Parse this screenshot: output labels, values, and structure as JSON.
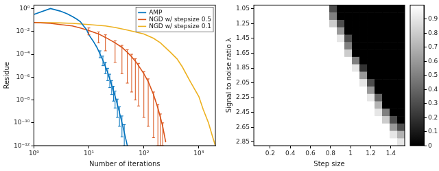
{
  "chart_data": [
    {
      "type": "line",
      "x_label": "Number of iterations",
      "y_label": "Residue",
      "log": true,
      "grid": false,
      "legend": "top-right",
      "xlim": [
        1,
        2000
      ],
      "ylim": [
        1e-12,
        2
      ],
      "xticks": [
        {
          "value": 1,
          "label": "10⁰"
        },
        {
          "value": 10,
          "label": "10¹"
        },
        {
          "value": 100,
          "label": "10²"
        },
        {
          "value": 1000,
          "label": "10³"
        }
      ],
      "yticks": [
        {
          "value": 1e-12,
          "label": "10⁻¹²"
        },
        {
          "value": 1e-10,
          "label": "10⁻¹⁰"
        },
        {
          "value": 1e-08,
          "label": "10⁻⁸"
        },
        {
          "value": 1e-06,
          "label": "10⁻⁶"
        },
        {
          "value": 0.0001,
          "label": "10⁻⁴"
        },
        {
          "value": 0.01,
          "label": "10⁻²"
        },
        {
          "value": 1,
          "label": "10⁰"
        }
      ],
      "series": [
        {
          "name": "AMP",
          "color": "#0072BD",
          "x": [
            1,
            2,
            3,
            4,
            5,
            6,
            7,
            8,
            9,
            10,
            12,
            14,
            16,
            18,
            20,
            22,
            24,
            26,
            28,
            30,
            33,
            36,
            40,
            44,
            48,
            50
          ],
          "values": [
            0.3,
            1,
            0.6,
            0.35,
            0.2,
            0.12,
            0.07,
            0.03,
            0.015,
            0.005,
            0.0014,
            0.0004,
            0.0001,
            3e-05,
            8e-06,
            2.5e-06,
            7e-07,
            2e-07,
            6e-08,
            2e-08,
            4e-09,
            8e-10,
            1e-10,
            1.5e-11,
            2.5e-12,
            1e-12
          ],
          "lower": [
            null,
            null,
            null,
            null,
            null,
            null,
            null,
            null,
            null,
            null,
            null,
            null,
            5e-05,
            1e-05,
            2e-06,
            5e-07,
            1.2e-07,
            3e-08,
            8e-09,
            2e-09,
            3e-10,
            5e-11,
            6e-12,
            1e-12,
            null,
            null
          ],
          "upper": [
            null,
            null,
            null,
            null,
            null,
            null,
            null,
            null,
            null,
            null,
            null,
            null,
            0.0002,
            7e-05,
            2e-05,
            6e-06,
            1.8e-06,
            5e-07,
            1.6e-07,
            6e-08,
            1.2e-08,
            2.5e-09,
            4e-10,
            7e-11,
            null,
            null
          ]
        },
        {
          "name": "NGD w/ stepsize 0.5",
          "color": "#D95319",
          "x": [
            1,
            2,
            3,
            5,
            7,
            10,
            15,
            20,
            30,
            40,
            50,
            60,
            70,
            80,
            100,
            120,
            150,
            180,
            200,
            220,
            250
          ],
          "values": [
            0.06,
            0.05,
            0.04,
            0.03,
            0.02,
            0.012,
            0.006,
            0.003,
            0.001,
            0.0004,
            0.00015,
            6e-05,
            2.5e-05,
            1e-05,
            2e-06,
            4e-07,
            3e-08,
            2e-09,
            3e-10,
            5e-11,
            2e-12
          ],
          "lower": [
            null,
            null,
            null,
            null,
            null,
            0.005,
            0.001,
            0.0002,
            2e-05,
            2e-06,
            3e-07,
            5e-08,
            1e-08,
            3e-09,
            3e-10,
            5e-11,
            5e-12,
            1e-12,
            1e-12,
            1e-12,
            null
          ],
          "upper": [
            null,
            null,
            null,
            null,
            null,
            0.02,
            0.009,
            0.005,
            0.0015,
            0.0006,
            0.00025,
            0.0001,
            4e-05,
            1.6e-05,
            3e-06,
            7e-07,
            5e-08,
            4e-09,
            6e-10,
            1e-10,
            null
          ]
        },
        {
          "name": "NGD w/ stepsize 0.1",
          "color": "#EDB120",
          "x": [
            1,
            2,
            3,
            5,
            10,
            20,
            30,
            50,
            70,
            100,
            150,
            200,
            300,
            400,
            500,
            700,
            1000,
            1200,
            1500,
            1800,
            2000
          ],
          "values": [
            0.06,
            0.058,
            0.055,
            0.05,
            0.04,
            0.03,
            0.022,
            0.013,
            0.009,
            0.006,
            0.0025,
            0.001,
            0.00016,
            4e-05,
            8e-06,
            4e-07,
            2e-08,
            1.5e-09,
            1e-10,
            5e-12,
            1e-12
          ]
        }
      ]
    },
    {
      "type": "heatmap",
      "x_label": "Step size",
      "y_label": "Signal to noise ratio λ",
      "grid": false,
      "x": [
        0.075,
        0.15,
        0.225,
        0.3,
        0.375,
        0.45,
        0.525,
        0.6,
        0.675,
        0.75,
        0.825,
        0.9,
        0.975,
        1.05,
        1.125,
        1.2,
        1.275,
        1.35,
        1.425,
        1.5
      ],
      "y": [
        1.05,
        1.15,
        1.25,
        1.35,
        1.45,
        1.55,
        1.65,
        1.75,
        1.85,
        1.95,
        2.05,
        2.15,
        2.25,
        2.35,
        2.45,
        2.55,
        2.65,
        2.75,
        2.85
      ],
      "xlim": [
        0.0375,
        1.5375
      ],
      "ylim": [
        1.0,
        2.9
      ],
      "xticks": [
        0.2,
        0.4,
        0.6,
        0.8,
        1,
        1.2,
        1.4
      ],
      "yticks": [
        1.05,
        1.25,
        1.45,
        1.65,
        1.85,
        2.05,
        2.25,
        2.45,
        2.65,
        2.85
      ],
      "cells": [
        [
          1,
          1,
          1,
          1,
          1,
          1,
          1,
          1,
          1,
          1,
          0.3,
          0,
          0,
          0,
          0,
          0,
          0,
          0,
          0,
          0
        ],
        [
          1,
          1,
          1,
          1,
          1,
          1,
          1,
          1,
          1,
          1,
          0.5,
          0,
          0,
          0,
          0,
          0,
          0,
          0,
          0,
          0
        ],
        [
          1,
          1,
          1,
          1,
          1,
          1,
          1,
          1,
          1,
          1,
          0.8,
          0.3,
          0,
          0,
          0,
          0,
          0,
          0,
          0,
          0
        ],
        [
          1,
          1,
          1,
          1,
          1,
          1,
          1,
          1,
          1,
          1,
          1,
          0.6,
          0,
          0,
          0,
          0,
          0,
          0,
          0,
          0
        ],
        [
          1,
          1,
          1,
          1,
          1,
          1,
          1,
          1,
          1,
          1,
          1,
          0.9,
          0.3,
          0,
          0,
          0,
          0,
          0,
          0,
          0
        ],
        [
          1,
          1,
          1,
          1,
          1,
          1,
          1,
          1,
          1,
          1,
          1,
          1,
          0.5,
          0,
          0,
          0,
          0,
          0,
          0,
          0
        ],
        [
          1,
          1,
          1,
          1,
          1,
          1,
          1,
          1,
          1,
          1,
          1,
          1,
          0.8,
          0,
          0,
          0,
          0,
          0,
          0,
          0
        ],
        [
          1,
          1,
          1,
          1,
          1,
          1,
          1,
          1,
          1,
          1,
          1,
          1,
          1,
          0.5,
          0,
          0,
          0,
          0,
          0,
          0
        ],
        [
          1,
          1,
          1,
          1,
          1,
          1,
          1,
          1,
          1,
          1,
          1,
          1,
          1,
          0.9,
          0.2,
          0,
          0,
          0,
          0,
          0
        ],
        [
          1,
          1,
          1,
          1,
          1,
          1,
          1,
          1,
          1,
          1,
          1,
          1,
          1,
          1,
          0.6,
          0,
          0,
          0,
          0,
          0
        ],
        [
          1,
          1,
          1,
          1,
          1,
          1,
          1,
          1,
          1,
          1,
          1,
          1,
          1,
          1,
          0.9,
          0.3,
          0,
          0,
          0,
          0
        ],
        [
          1,
          1,
          1,
          1,
          1,
          1,
          1,
          1,
          1,
          1,
          1,
          1,
          1,
          1,
          1,
          0.6,
          0,
          0,
          0,
          0
        ],
        [
          1,
          1,
          1,
          1,
          1,
          1,
          1,
          1,
          1,
          1,
          1,
          1,
          1,
          1,
          1,
          0.9,
          0.4,
          0,
          0,
          0
        ],
        [
          1,
          1,
          1,
          1,
          1,
          1,
          1,
          1,
          1,
          1,
          1,
          1,
          1,
          1,
          1,
          1,
          0.7,
          0,
          0,
          0
        ],
        [
          1,
          1,
          1,
          1,
          1,
          1,
          1,
          1,
          1,
          1,
          1,
          1,
          1,
          1,
          1,
          1,
          0.9,
          0.5,
          0,
          0
        ],
        [
          1,
          1,
          1,
          1,
          1,
          1,
          1,
          1,
          1,
          1,
          1,
          1,
          1,
          1,
          1,
          1,
          1,
          0.8,
          0.3,
          0
        ],
        [
          1,
          1,
          1,
          1,
          1,
          1,
          1,
          1,
          1,
          1,
          1,
          1,
          1,
          1,
          1,
          1,
          1,
          1,
          0.6,
          0.3
        ],
        [
          1,
          1,
          1,
          1,
          1,
          1,
          1,
          1,
          1,
          1,
          1,
          1,
          1,
          1,
          1,
          1,
          1,
          1,
          0.9,
          0.7
        ],
        [
          1,
          1,
          1,
          1,
          1,
          1,
          1,
          1,
          1,
          1,
          1,
          1,
          1,
          1,
          1,
          1,
          1,
          1,
          1,
          0.9
        ]
      ],
      "colorbar": {
        "range": [
          0,
          1
        ],
        "ticks": [
          0,
          0.1,
          0.2,
          0.3,
          0.4,
          0.5,
          0.6,
          0.7,
          0.8,
          0.9
        ]
      }
    }
  ]
}
